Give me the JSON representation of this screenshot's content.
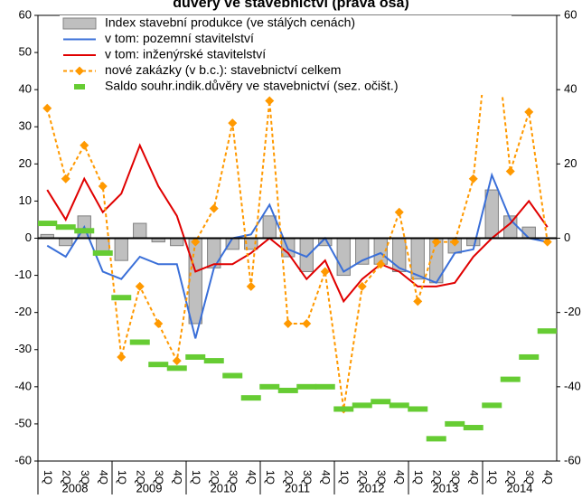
{
  "chart_data": {
    "type": "combo",
    "title": "důvěry ve stavebnictví (pravá osa)",
    "categories": [
      "1Q",
      "2Q",
      "3Q",
      "4Q",
      "1Q",
      "2Q",
      "3Q",
      "4Q",
      "1Q",
      "2Q",
      "3Q",
      "4Q",
      "1Q",
      "2Q",
      "3Q",
      "4Q",
      "1Q",
      "2Q",
      "3Q",
      "4Q",
      "1Q",
      "2Q",
      "3Q",
      "4Q",
      "1Q",
      "2Q",
      "3Q",
      "4Q"
    ],
    "year_groups": [
      "2008",
      "2009",
      "2010",
      "2011",
      "2012",
      "2013",
      "2014"
    ],
    "ylim": [
      -60,
      60
    ],
    "yticks": [
      -60,
      -50,
      -40,
      -30,
      -20,
      -10,
      0,
      10,
      20,
      30,
      40,
      50,
      60
    ],
    "y2lim": [
      -60,
      60
    ],
    "y2ticks": [
      -60,
      -40,
      -20,
      0,
      20,
      40,
      60
    ],
    "series": [
      {
        "name": "Index stavební produkce (ve stálých cenách)",
        "kind": "bar",
        "color": "#bfbfbf",
        "values": [
          1,
          -2,
          6,
          -4,
          -6,
          4,
          -1,
          -2,
          -23,
          -8,
          -3,
          -3,
          6,
          -5,
          -9,
          -2,
          -10,
          -7,
          -7,
          -9,
          -11,
          -12,
          -4,
          -2,
          13,
          6,
          3,
          0
        ]
      },
      {
        "name": "v tom: pozemní stavitelství",
        "kind": "line",
        "color": "#3a6fd8",
        "values": [
          -2,
          -5,
          3,
          -9,
          -11,
          -5,
          -7,
          -7,
          -27,
          -8,
          0,
          1,
          9,
          -3,
          -5,
          0,
          -9,
          -6,
          -4,
          -8,
          -10,
          -12,
          -4,
          -3,
          17,
          5,
          0,
          -1
        ]
      },
      {
        "name": "v tom: inženýrské stavitelství",
        "kind": "line",
        "color": "#e00000",
        "values": [
          13,
          5,
          16,
          7,
          12,
          25,
          14,
          6,
          -9,
          -7,
          -7,
          -4,
          0,
          -4,
          -11,
          -6,
          -17,
          -11,
          -7,
          -9,
          -13,
          -13,
          -12,
          -5,
          0,
          4,
          10,
          3
        ]
      },
      {
        "name": "nové zakázky (v b.c.): stavebnictví celkem",
        "kind": "dashed",
        "color": "#ff9900",
        "values": [
          35,
          16,
          25,
          14,
          -32,
          -13,
          -23,
          -33,
          -1,
          8,
          31,
          -13,
          37,
          -23,
          -23,
          -9,
          -46,
          -13,
          -7,
          7,
          -17,
          -1,
          -1,
          16,
          65,
          18,
          34,
          -1
        ]
      },
      {
        "name": "Saldo souhr.indik.důvěry ve stavebnictví (sez. očišt.)",
        "kind": "dash",
        "axis": "y2",
        "color": "#66cc33",
        "values": [
          4,
          3,
          2,
          -4,
          -16,
          -28,
          -34,
          -35,
          -32,
          -33,
          -37,
          -43,
          -40,
          -41,
          -40,
          -40,
          -46,
          -45,
          -44,
          -45,
          -46,
          -54,
          -50,
          -51,
          -45,
          -38,
          -32,
          -25
        ]
      }
    ]
  }
}
